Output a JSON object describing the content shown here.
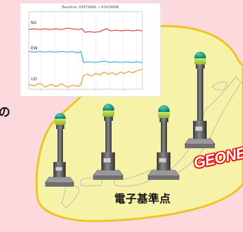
{
  "chart": {
    "title": "Baseline: 93979999 → 97A39998",
    "series": [
      {
        "name": "NS",
        "color": "#e0474c"
      },
      {
        "name": "EW",
        "color": "#3fb4d8"
      },
      {
        "name": "UD",
        "color": "#f0a046"
      }
    ]
  },
  "partial_glyph": "の",
  "station_label": "電子基準点",
  "brand": "GEONET",
  "colors": {
    "background": "#fcd9dc",
    "japan_blob": "#f6f2a8",
    "japan_outline": "#f0c323",
    "antenna_dome": "#1a9a86",
    "antenna_band": "#b4d64a",
    "pillar": "#555555",
    "base": "#888888"
  }
}
